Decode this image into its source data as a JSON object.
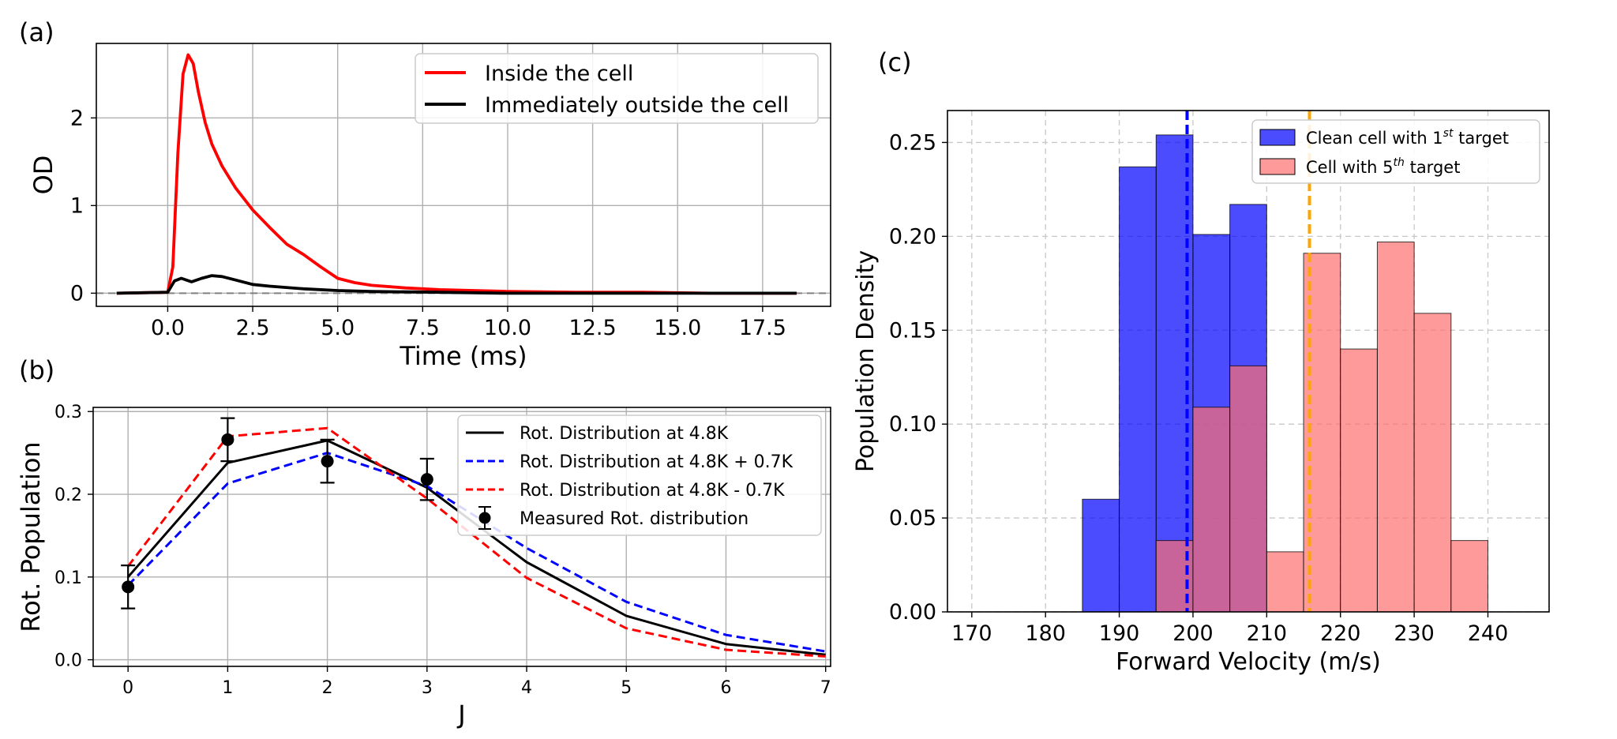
{
  "figure": {
    "panel_labels": {
      "a": "(a)",
      "b": "(b)",
      "c": "(c)"
    }
  },
  "chart_data": [
    {
      "panel": "(a)",
      "type": "line",
      "xlabel": "Time (ms)",
      "ylabel": "OD",
      "xlim": [
        -2.1,
        19.5
      ],
      "ylim": [
        -0.15,
        2.85
      ],
      "xticks": [
        0.0,
        2.5,
        5.0,
        7.5,
        10.0,
        12.5,
        15.0,
        17.5
      ],
      "xtick_labels": [
        "0.0",
        "2.5",
        "5.0",
        "7.5",
        "10.0",
        "12.5",
        "15.0",
        "17.5"
      ],
      "yticks": [
        0,
        1,
        2
      ],
      "ytick_labels": [
        "0",
        "1",
        "2"
      ],
      "grid": true,
      "legend_position": "top-right",
      "baseline": {
        "y": 0,
        "style": "dashed",
        "color": "#808080"
      },
      "series": [
        {
          "name": "Inside the cell",
          "color": "#ff0000",
          "x": [
            -1.5,
            0.0,
            0.15,
            0.3,
            0.45,
            0.6,
            0.75,
            0.9,
            1.1,
            1.3,
            1.6,
            2.0,
            2.5,
            3.0,
            3.5,
            4.0,
            4.5,
            5.0,
            5.5,
            6.0,
            7.0,
            8.0,
            9.0,
            10.0,
            12.0,
            14.0,
            16.0,
            18.5
          ],
          "y": [
            0.0,
            0.01,
            0.3,
            1.6,
            2.5,
            2.72,
            2.62,
            2.3,
            1.95,
            1.7,
            1.45,
            1.2,
            0.95,
            0.75,
            0.56,
            0.44,
            0.3,
            0.17,
            0.12,
            0.09,
            0.06,
            0.04,
            0.03,
            0.02,
            0.01,
            0.01,
            0.0,
            0.0
          ]
        },
        {
          "name": "Immediately outside the cell",
          "color": "#000000",
          "x": [
            -1.5,
            0.0,
            0.2,
            0.4,
            0.7,
            1.0,
            1.3,
            1.6,
            2.0,
            2.5,
            3.0,
            4.0,
            5.0,
            6.0,
            8.0,
            10.0,
            14.0,
            18.5
          ],
          "y": [
            0.0,
            0.01,
            0.14,
            0.17,
            0.13,
            0.17,
            0.2,
            0.19,
            0.15,
            0.1,
            0.08,
            0.05,
            0.03,
            0.02,
            0.01,
            0.0,
            0.0,
            0.0
          ]
        }
      ]
    },
    {
      "panel": "(b)",
      "type": "line",
      "xlabel": "J",
      "ylabel": "Rot. Population",
      "xlim": [
        -0.35,
        7.05
      ],
      "ylim": [
        -0.008,
        0.305
      ],
      "xticks": [
        0,
        1,
        2,
        3,
        4,
        5,
        6,
        7
      ],
      "xtick_labels": [
        "0",
        "1",
        "2",
        "3",
        "4",
        "5",
        "6",
        "7"
      ],
      "yticks": [
        0.0,
        0.1,
        0.2,
        0.3
      ],
      "ytick_labels": [
        "0.0",
        "0.1",
        "0.2",
        "0.3"
      ],
      "grid": true,
      "legend_position": "top-right",
      "series": [
        {
          "name": "Rot. Distribution at 4.8K",
          "style": "solid",
          "color": "#000000",
          "x": [
            0,
            1,
            2,
            3,
            4,
            5,
            6,
            7
          ],
          "y": [
            0.1,
            0.238,
            0.265,
            0.208,
            0.118,
            0.053,
            0.019,
            0.006
          ]
        },
        {
          "name": "Rot. Distribution at 4.8K + 0.7K",
          "style": "dashed",
          "color": "#0000ff",
          "x": [
            0,
            1,
            2,
            3,
            4,
            5,
            6,
            7
          ],
          "y": [
            0.09,
            0.213,
            0.25,
            0.21,
            0.135,
            0.07,
            0.03,
            0.01
          ]
        },
        {
          "name": "Rot. Distribution at 4.8K - 0.7K",
          "style": "dashed",
          "color": "#ff0000",
          "x": [
            0,
            1,
            2,
            3,
            4,
            5,
            6,
            7
          ],
          "y": [
            0.113,
            0.27,
            0.28,
            0.195,
            0.099,
            0.038,
            0.012,
            0.004
          ]
        }
      ],
      "measured": {
        "name": "Measured Rot. distribution",
        "color": "#000000",
        "x": [
          0,
          1,
          2,
          3
        ],
        "y": [
          0.088,
          0.266,
          0.24,
          0.218
        ],
        "yerr": [
          0.026,
          0.026,
          0.026,
          0.025
        ]
      }
    },
    {
      "panel": "(c)",
      "type": "bar",
      "xlabel": "Forward Velocity (m/s)",
      "ylabel": "Population Density",
      "xlim": [
        166.7,
        248.3
      ],
      "ylim": [
        0,
        0.267
      ],
      "xticks": [
        170,
        180,
        190,
        200,
        210,
        220,
        230,
        240
      ],
      "xtick_labels": [
        "170",
        "180",
        "190",
        "200",
        "210",
        "220",
        "230",
        "240"
      ],
      "yticks": [
        0.0,
        0.05,
        0.1,
        0.15,
        0.2,
        0.25
      ],
      "ytick_labels": [
        "0.00",
        "0.05",
        "0.10",
        "0.15",
        "0.20",
        "0.25"
      ],
      "grid": true,
      "grid_style": "dashed",
      "legend_position": "top-right",
      "bin_edges": [
        170,
        175,
        180,
        185,
        190,
        195,
        200,
        205,
        210,
        215,
        220,
        225,
        230,
        235,
        240,
        245
      ],
      "series": [
        {
          "name_prefix": "Clean cell with 1",
          "name_sup": "st",
          "name_suffix": " target",
          "color": "#0000ff",
          "opacity": 0.7,
          "values": [
            0,
            0,
            0,
            0.06,
            0.237,
            0.254,
            0.201,
            0.217,
            0,
            0,
            0,
            0,
            0,
            0,
            0
          ]
        },
        {
          "name_prefix": "Cell with 5",
          "name_sup": "th",
          "name_suffix": " target",
          "color": "#ff6f6f",
          "opacity": 0.7,
          "values": [
            0,
            0,
            0,
            0,
            0,
            0.038,
            0.109,
            0.131,
            0.032,
            0.191,
            0.14,
            0.197,
            0.159,
            0.038,
            0
          ]
        }
      ],
      "vlines": [
        {
          "x": 199.2,
          "color": "#0000ff",
          "style": "dashed"
        },
        {
          "x": 215.8,
          "color": "#ffa500",
          "style": "dashed"
        }
      ]
    }
  ]
}
